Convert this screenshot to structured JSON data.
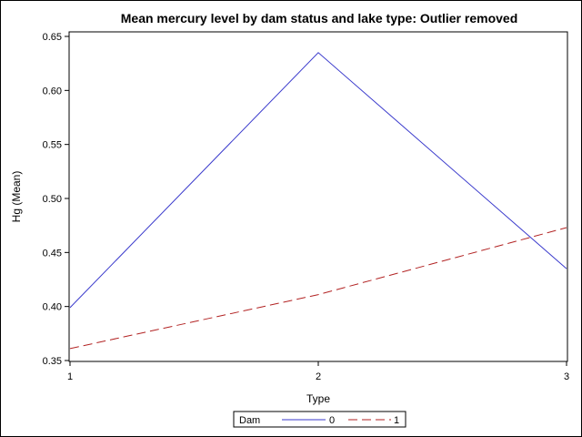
{
  "chart_data": {
    "type": "line",
    "title": "Mean mercury level by dam status and lake type: Outlier removed",
    "xlabel": "Type",
    "ylabel": "Hg (Mean)",
    "x": [
      1,
      2,
      3
    ],
    "x_ticks": [
      "1",
      "2",
      "3"
    ],
    "xlim": [
      1,
      3
    ],
    "y_ticks": [
      "0.35",
      "0.40",
      "0.45",
      "0.50",
      "0.55",
      "0.60",
      "0.65"
    ],
    "ylim": [
      0.35,
      0.65
    ],
    "grid": false,
    "legend": {
      "title": "Dam",
      "placement": "bottom-center"
    },
    "series": [
      {
        "name": "0",
        "values": [
          0.399,
          0.635,
          0.435
        ],
        "color": "#3a3acc",
        "style": "solid"
      },
      {
        "name": "1",
        "values": [
          0.361,
          0.411,
          0.473
        ],
        "color": "#b22222",
        "style": "dashed"
      }
    ]
  }
}
